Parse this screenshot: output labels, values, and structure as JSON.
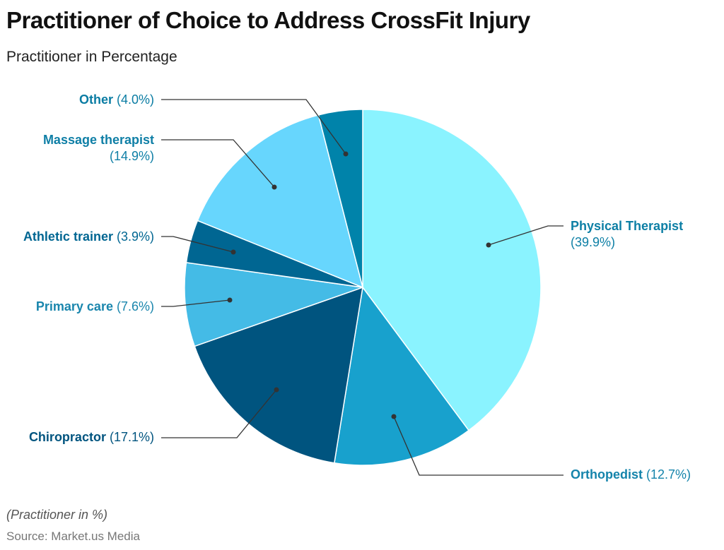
{
  "chart_data": {
    "type": "pie",
    "title": "Practitioner of Choice to Address CrossFit Injury",
    "subtitle": "Practitioner in Percentage",
    "start_angle": "12 o'clock",
    "direction": "clockwise",
    "slices": [
      {
        "name": "Physical Therapist",
        "value": 39.9,
        "display": "(39.9%)",
        "color": "#8af3ff",
        "label_color": "#0d7fa5"
      },
      {
        "name": "Orthopedist",
        "value": 12.7,
        "display": "(12.7%)",
        "color": "#18a1cd",
        "label_color": "#1584ab"
      },
      {
        "name": "Chiropractor",
        "value": 17.1,
        "display": "(17.1%)",
        "color": "#00547f",
        "label_color": "#00547f"
      },
      {
        "name": "Primary care",
        "value": 7.6,
        "display": "(7.6%)",
        "color": "#44bbe6",
        "label_color": "#1a86ad"
      },
      {
        "name": "Athletic trainer",
        "value": 3.9,
        "display": "(3.9%)",
        "color": "#006692",
        "label_color": "#006692"
      },
      {
        "name": "Massage therapist",
        "value": 14.9,
        "display": "(14.9%)",
        "color": "#67d6fd",
        "label_color": "#0f7fa6"
      },
      {
        "name": "Other",
        "value": 4.0,
        "display": "(4.0%)",
        "color": "#0083aa",
        "label_color": "#0a7ca3"
      }
    ],
    "note": "(Practitioner in %)",
    "source": "Source: Market.us Media"
  }
}
